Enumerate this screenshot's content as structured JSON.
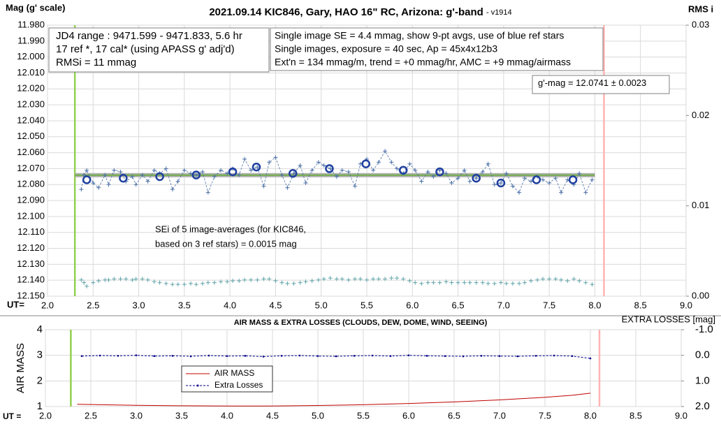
{
  "chart_data": [
    {
      "type": "line",
      "title": "2021.09.14 KIC846, Gary, HAO 16\" RC, Arizona: g'-band",
      "subtitle": "- v1914",
      "ylabel": "Mag (g' scale)",
      "y2label": "RMS i",
      "xlabel": "UT=",
      "xlim": [
        2.0,
        9.0
      ],
      "xticks": [
        {
          "value": 2.0,
          "label": "2.0"
        },
        2.5,
        {
          "value": 3.0,
          "label": "3.0"
        },
        3.5,
        {
          "value": 4.0,
          "label": "4.0"
        },
        4.5,
        {
          "value": 5.0,
          "label": "5.0"
        },
        5.5,
        {
          "value": 6.0,
          "label": "6.0"
        },
        6.5,
        {
          "value": 7.0,
          "label": "7.0"
        },
        7.5,
        {
          "value": 8.0,
          "label": "8.0"
        },
        8.5,
        {
          "value": 9.0,
          "label": "9.0"
        }
      ],
      "ylim": [
        11.98,
        12.15
      ],
      "y_inverted": true,
      "yticks": [
        {
          "value": 11.98,
          "label": "11.980"
        },
        {
          "value": 11.99,
          "label": "11.990"
        },
        {
          "value": 12.0,
          "label": "12.000"
        },
        {
          "value": 12.01,
          "label": "12.010"
        },
        {
          "value": 12.02,
          "label": "12.020"
        },
        {
          "value": 12.03,
          "label": "12.030"
        },
        {
          "value": 12.04,
          "label": "12.040"
        },
        {
          "value": 12.05,
          "label": "12.050"
        },
        {
          "value": 12.06,
          "label": "12.060"
        },
        {
          "value": 12.07,
          "label": "12.070"
        },
        {
          "value": 12.08,
          "label": "12.080"
        },
        {
          "value": 12.09,
          "label": "12.090"
        },
        {
          "value": 12.1,
          "label": "12.100"
        },
        {
          "value": 12.11,
          "label": "12.110"
        },
        {
          "value": 12.12,
          "label": "12.120"
        },
        {
          "value": 12.13,
          "label": "12.130"
        },
        {
          "value": 12.14,
          "label": "12.140"
        },
        {
          "value": 12.15,
          "label": "12.150"
        }
      ],
      "y2lim": [
        0,
        0.03
      ],
      "y2ticks": [
        {
          "value": 0,
          "label": "0.00"
        },
        0.01,
        0.02,
        0.03
      ],
      "grid": true,
      "vlines": [
        {
          "x": 2.3,
          "color": "#92d050"
        },
        {
          "x": 8.1,
          "color": "#ffb3b3"
        }
      ],
      "series": [
        {
          "color": "#b0b0b0",
          "line": "solid",
          "width": 6,
          "marker": "none",
          "x": [
            2.3,
            8.0
          ],
          "values": [
            12.0741,
            12.0741
          ]
        },
        {
          "color": "#70ad47",
          "line": "solid",
          "width": 2,
          "marker": "none",
          "x": [
            2.3,
            8.0
          ],
          "values": [
            12.0741,
            12.0741
          ]
        },
        {
          "color": "#4a6fa5",
          "line": "dashed",
          "width": 0.8,
          "marker": "plus",
          "x": [
            2.37,
            2.4,
            2.43,
            2.5,
            2.56,
            2.63,
            2.67,
            2.73,
            2.8,
            2.86,
            2.93,
            2.97,
            3.04,
            3.1,
            3.17,
            3.23,
            3.3,
            3.37,
            3.43,
            3.5,
            3.57,
            3.63,
            3.7,
            3.76,
            3.83,
            3.9,
            3.97,
            4.03,
            4.1,
            4.16,
            4.23,
            4.3,
            4.37,
            4.43,
            4.5,
            4.57,
            4.63,
            4.7,
            4.77,
            4.83,
            4.9,
            4.97,
            5.03,
            5.1,
            5.17,
            5.23,
            5.3,
            5.37,
            5.43,
            5.5,
            5.57,
            5.63,
            5.7,
            5.77,
            5.83,
            5.9,
            5.97,
            6.03,
            6.1,
            6.17,
            6.23,
            6.3,
            6.37,
            6.43,
            6.5,
            6.57,
            6.63,
            6.7,
            6.77,
            6.83,
            6.9,
            6.97,
            7.03,
            7.1,
            7.17,
            7.23,
            7.3,
            7.37,
            7.43,
            7.5,
            7.57,
            7.63,
            7.7,
            7.77,
            7.83,
            7.9,
            7.97
          ],
          "values": [
            12.083,
            12.074,
            12.071,
            12.079,
            12.082,
            12.074,
            12.08,
            12.071,
            12.072,
            12.078,
            12.075,
            12.08,
            12.074,
            12.078,
            12.071,
            12.073,
            12.07,
            12.083,
            12.078,
            12.071,
            12.073,
            12.074,
            12.072,
            12.085,
            12.075,
            12.071,
            12.073,
            12.07,
            12.074,
            12.064,
            12.071,
            12.069,
            12.081,
            12.066,
            12.063,
            12.074,
            12.082,
            12.073,
            12.068,
            12.079,
            12.071,
            12.066,
            12.068,
            12.07,
            12.075,
            12.071,
            12.072,
            12.081,
            12.067,
            12.064,
            12.071,
            12.066,
            12.059,
            12.066,
            12.07,
            12.073,
            12.067,
            12.071,
            12.078,
            12.072,
            12.075,
            12.071,
            12.073,
            12.079,
            12.076,
            12.071,
            12.078,
            12.076,
            12.072,
            12.067,
            12.08,
            12.079,
            12.073,
            12.081,
            12.085,
            12.076,
            12.078,
            12.075,
            12.077,
            12.079,
            12.076,
            12.085,
            12.077,
            12.08,
            12.073,
            12.085,
            12.077
          ]
        },
        {
          "color": "#1f3fa0",
          "line": "none",
          "width": 2.5,
          "marker": "circle",
          "x": [
            2.43,
            2.83,
            3.23,
            3.63,
            4.03,
            4.29,
            4.69,
            5.09,
            5.49,
            5.9,
            6.3,
            6.7,
            6.97,
            7.36,
            7.76
          ],
          "values": [
            12.077,
            12.076,
            12.075,
            12.074,
            12.072,
            12.069,
            12.073,
            12.07,
            12.067,
            12.071,
            12.072,
            12.076,
            12.079,
            12.077,
            12.077
          ]
        },
        {
          "color": "#5fa3a8",
          "line": "none",
          "width": 1,
          "marker": "plus",
          "axis": "y2",
          "x": [
            2.37,
            2.4,
            2.43,
            2.5,
            2.56,
            2.63,
            2.67,
            2.73,
            2.8,
            2.86,
            2.93,
            2.97,
            3.04,
            3.1,
            3.17,
            3.23,
            3.3,
            3.37,
            3.43,
            3.5,
            3.57,
            3.63,
            3.7,
            3.76,
            3.83,
            3.9,
            3.97,
            4.03,
            4.1,
            4.16,
            4.23,
            4.3,
            4.37,
            4.43,
            4.5,
            4.57,
            4.63,
            4.7,
            4.77,
            4.83,
            4.9,
            4.97,
            5.03,
            5.1,
            5.17,
            5.23,
            5.3,
            5.37,
            5.43,
            5.5,
            5.57,
            5.63,
            5.7,
            5.77,
            5.83,
            5.9,
            5.97,
            6.03,
            6.1,
            6.17,
            6.23,
            6.3,
            6.37,
            6.43,
            6.5,
            6.57,
            6.63,
            6.7,
            6.77,
            6.83,
            6.9,
            6.97,
            7.03,
            7.1,
            7.17,
            7.23,
            7.3,
            7.37,
            7.43,
            7.5,
            7.57,
            7.63,
            7.7,
            7.77,
            7.83,
            7.9,
            7.97
          ],
          "values": [
            0.0018,
            0.0015,
            0.0011,
            0.0015,
            0.0017,
            0.0018,
            0.0018,
            0.0019,
            0.0019,
            0.0019,
            0.0018,
            0.0019,
            0.0019,
            0.0018,
            0.0016,
            0.0015,
            0.0014,
            0.0013,
            0.0013,
            0.0013,
            0.0014,
            0.0013,
            0.0014,
            0.0015,
            0.0015,
            0.0016,
            0.0016,
            0.0017,
            0.0017,
            0.0018,
            0.0018,
            0.0018,
            0.0019,
            0.0019,
            0.0017,
            0.0015,
            0.0014,
            0.0014,
            0.0015,
            0.0016,
            0.0017,
            0.0018,
            0.0019,
            0.002,
            0.0019,
            0.0019,
            0.0018,
            0.0019,
            0.0019,
            0.0018,
            0.0019,
            0.0019,
            0.0019,
            0.002,
            0.002,
            0.0019,
            0.0017,
            0.0015,
            0.0014,
            0.0015,
            0.0015,
            0.0015,
            0.0016,
            0.0015,
            0.0015,
            0.0015,
            0.0015,
            0.0015,
            0.0015,
            0.0014,
            0.0014,
            0.0015,
            0.0014,
            0.0014,
            0.0014,
            0.0015,
            0.0017,
            0.0018,
            0.0019,
            0.0019,
            0.0019,
            0.0018,
            0.0017,
            0.0019,
            0.0017,
            0.0015,
            0.0013
          ]
        }
      ],
      "annotations": [
        {
          "lines": [
            "JD4 range : 9471.599 - 9471.833,  5.6  hr",
            "17 ref *, 17 cal* (using APASS g' adj'd)",
            "RMSi = 11 mmag"
          ]
        },
        {
          "lines": [
            "Single image SE = 4.4 mmag, show  9-pt avgs, use of blue ref stars",
            "Single images, exposure = 40 sec, Ap = 45x4x12b3",
            "Ext'n = 134 mmag/m, trend = +0 mmag/hr, AMC = +9 mmag/airmass"
          ]
        },
        {
          "lines": [
            "g'-mag = 12.0741 ± 0.0023"
          ]
        },
        {
          "lines": [
            "SEi of 5 image-averages (for KIC846,",
            "based on 3 ref stars) = 0.0015 mag"
          ]
        }
      ]
    },
    {
      "type": "line",
      "title": "AIR MASS & EXTRA LOSSES (CLOUDS, DEW, DOME, WIND, SEEING)",
      "ylabel": "AIR MASS",
      "y2label": "EXTRA LOSSES [mag]",
      "xlabel": "UT =",
      "xlim": [
        2.0,
        9.0
      ],
      "xticks": [
        {
          "value": 2.0,
          "label": "2.0"
        },
        2.5,
        {
          "value": 3.0,
          "label": "3.0"
        },
        3.5,
        {
          "value": 4.0,
          "label": "4.0"
        },
        4.5,
        {
          "value": 5.0,
          "label": "5.0"
        },
        5.5,
        {
          "value": 6.0,
          "label": "6.0"
        },
        6.5,
        {
          "value": 7.0,
          "label": "7.0"
        },
        7.5,
        {
          "value": 8.0,
          "label": "8.0"
        },
        8.5,
        {
          "value": 9.0,
          "label": "9.0"
        }
      ],
      "ylim": [
        1,
        4
      ],
      "yticks": [
        1,
        2,
        3,
        4
      ],
      "y2lim": [
        -1.0,
        2.0
      ],
      "y2_inverted": true,
      "y2ticks": [
        {
          "value": -1.0,
          "label": "-1.0"
        },
        {
          "value": 0.0,
          "label": "0.0"
        },
        {
          "value": 1.0,
          "label": "1.0"
        },
        {
          "value": 2.0,
          "label": "2.0"
        }
      ],
      "grid": true,
      "legend": "inside",
      "vlines": [
        {
          "x": 2.28,
          "color": "#92d050"
        },
        {
          "x": 8.1,
          "color": "#ffb3b3"
        }
      ],
      "series": [
        {
          "name": "AIR MASS",
          "color": "#c00000",
          "line": "solid",
          "width": 1,
          "marker": "none",
          "x": [
            2.35,
            2.6,
            3.0,
            3.5,
            4.0,
            4.5,
            5.0,
            5.5,
            6.0,
            6.5,
            7.0,
            7.5,
            7.8,
            8.0
          ],
          "values": [
            1.09,
            1.07,
            1.05,
            1.03,
            1.02,
            1.02,
            1.04,
            1.07,
            1.12,
            1.18,
            1.26,
            1.36,
            1.44,
            1.52
          ]
        },
        {
          "name": "Extra Losses",
          "color": "#00008b",
          "line": "dashed",
          "width": 1,
          "marker": "dot",
          "axis": "y2",
          "x": [
            2.4,
            2.6,
            2.8,
            3.0,
            3.2,
            3.4,
            3.6,
            3.8,
            4.0,
            4.2,
            4.4,
            4.6,
            4.8,
            5.0,
            5.2,
            5.4,
            5.6,
            5.8,
            6.0,
            6.2,
            6.4,
            6.6,
            6.8,
            7.0,
            7.2,
            7.4,
            7.6,
            7.8,
            8.0
          ],
          "values": [
            0.03,
            0.01,
            0.02,
            0.0,
            0.03,
            0.02,
            0.04,
            0.01,
            0.03,
            0.02,
            0.05,
            0.02,
            0.01,
            0.03,
            0.04,
            0.02,
            0.01,
            0.03,
            0.0,
            0.02,
            0.03,
            0.04,
            0.02,
            0.03,
            0.04,
            0.02,
            0.01,
            0.03,
            0.12
          ]
        }
      ]
    }
  ]
}
